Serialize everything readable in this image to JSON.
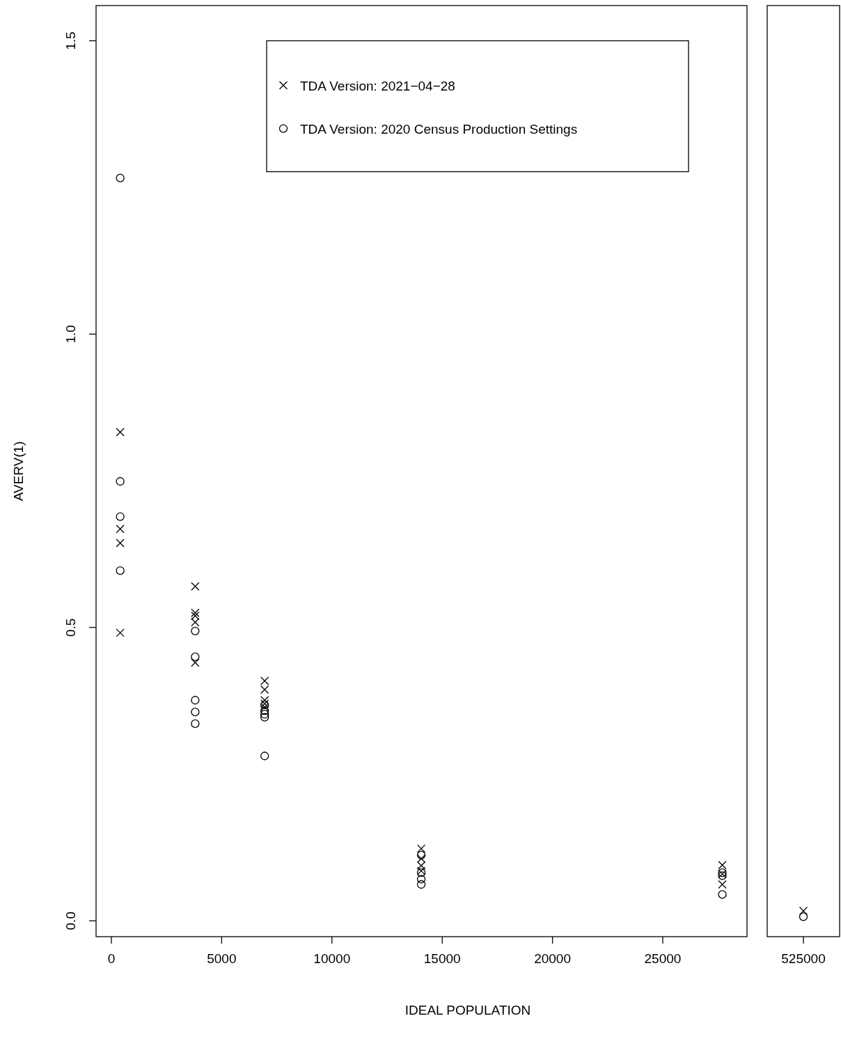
{
  "chart_data": [
    {
      "type": "scatter",
      "xlabel": "IDEAL POPULATION",
      "ylabel": "AVERV(1)",
      "xlim": [
        -694,
        28820
      ],
      "ylim": [
        -0.027,
        1.56
      ],
      "xticks": [
        0,
        5000,
        10000,
        15000,
        20000,
        25000
      ],
      "yticks": [
        {
          "value": 0,
          "label": "0.0"
        },
        0.5,
        {
          "value": 1,
          "label": "1.0"
        },
        1.5
      ],
      "legend": "top right",
      "grid": false,
      "series": [
        {
          "name": "TDA Version: 2021−04−28",
          "color": "#000000",
          "marker": "cross",
          "x": [
            400,
            400,
            400,
            400,
            3800,
            3800,
            3800,
            3800,
            3800,
            6950,
            6950,
            6950,
            6950,
            6950,
            14050,
            14050,
            14050,
            14050,
            27700,
            27700,
            27700
          ],
          "values": [
            0.833,
            0.668,
            0.644,
            0.491,
            0.57,
            0.525,
            0.52,
            0.509,
            0.44,
            0.409,
            0.394,
            0.376,
            0.37,
            0.364,
            0.123,
            0.106,
            0.094,
            0.085,
            0.095,
            0.08,
            0.062
          ]
        },
        {
          "name": "TDA Version: 2020 Census Production Settings",
          "color": "#000000",
          "marker": "circle",
          "x": [
            400,
            400,
            400,
            400,
            3800,
            3800,
            3800,
            3800,
            3800,
            6950,
            6950,
            6950,
            6950,
            6950,
            14050,
            14050,
            14050,
            14050,
            27700,
            27700,
            27700
          ],
          "values": [
            1.266,
            0.749,
            0.689,
            0.597,
            0.494,
            0.45,
            0.376,
            0.356,
            0.336,
            0.368,
            0.358,
            0.352,
            0.347,
            0.281,
            0.112,
            0.082,
            0.071,
            0.062,
            0.082,
            0.077,
            0.045
          ]
        }
      ]
    },
    {
      "type": "scatter",
      "categories": [
        "525000"
      ],
      "ylim": [
        -0.027,
        1.56
      ],
      "tick_labels": "x",
      "legend": false,
      "grid": false,
      "series": [
        {
          "color": "#000000",
          "marker": "cross",
          "values": [
            0.017
          ]
        },
        {
          "color": "#000000",
          "marker": "circle",
          "values": [
            0.007
          ]
        }
      ]
    }
  ]
}
